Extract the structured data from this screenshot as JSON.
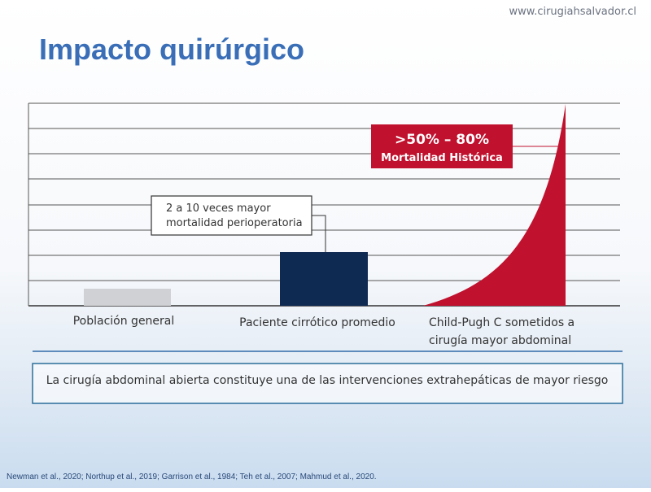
{
  "header": {
    "title": "Impacto quirúrgico",
    "url": "www.cirugiahsalvador.cl"
  },
  "chart": {
    "categories": [
      [
        "Población general"
      ],
      [
        "Paciente cirrótico promedio"
      ],
      [
        "Child-Pugh C sometidos a",
        "cirugía mayor abdominal"
      ]
    ],
    "annotations": [
      [
        "2 a 10 veces mayor",
        "mortalidad perioperatoria"
      ],
      [
        ">50% – 80%",
        "Mortalidad Histórica"
      ]
    ]
  },
  "summary": "La cirugía abdominal abierta constituye una de las intervenciones extrahepáticas de mayor riesgo",
  "footer": "Newman et al., 2020; Northup et al., 2019; Garrison et al., 1984; Teh et al., 2007; Mahmud et al., 2020."
}
